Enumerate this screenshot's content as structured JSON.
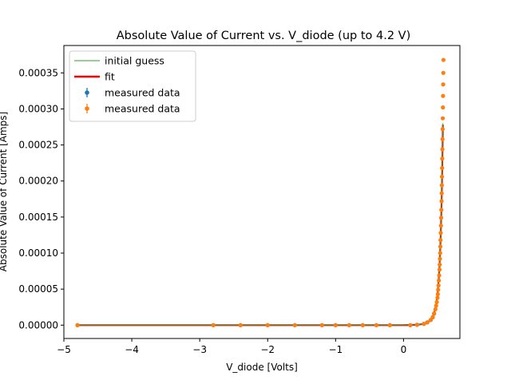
{
  "chart_data": {
    "type": "scatter",
    "title": "Absolute Value of Current vs. V_diode (up to 4.2 V)",
    "xlabel": "V_diode [Volts]",
    "ylabel": "Absolute Value of Current [Amps]",
    "xlim": [
      -5.0,
      0.83
    ],
    "ylim": [
      -1.85e-05,
      0.000388
    ],
    "xticks": [
      -5,
      -4,
      -3,
      -2,
      -1,
      0
    ],
    "xtick_labels": [
      "−5",
      "−4",
      "−3",
      "−2",
      "−1",
      "0"
    ],
    "yticks": [
      0,
      5e-05,
      0.0001,
      0.00015,
      0.0002,
      0.00025,
      0.0003,
      0.00035
    ],
    "ytick_labels": [
      "0.00000",
      "0.00005",
      "0.00010",
      "0.00015",
      "0.00020",
      "0.00025",
      "0.00030",
      "0.00035"
    ],
    "grid": false,
    "legend_position": "top-left",
    "colors": {
      "initial_guess": "#2ca02c",
      "fit": "#ff0000",
      "measured_blue": "#1f77b4",
      "measured_orange": "#ff7f0e"
    },
    "legend": [
      {
        "label": "initial guess",
        "kind": "line",
        "color": "#2ca02c"
      },
      {
        "label": " fit",
        "kind": "line-thick",
        "color": "#ff0000"
      },
      {
        "label": "measured data",
        "kind": "errorbar",
        "color": "#1f77b4"
      },
      {
        "label": "measured data",
        "kind": "errorbar",
        "color": "#ff7f0e"
      }
    ],
    "series": [
      {
        "name": "initial guess",
        "kind": "line",
        "x": [
          -4.8,
          -2.0,
          0.0,
          0.1,
          0.2,
          0.3,
          0.35,
          0.4,
          0.43,
          0.46,
          0.48,
          0.5,
          0.52,
          0.54,
          0.55,
          0.56,
          0.57,
          0.58
        ],
        "y": [
          0,
          0,
          0,
          2e-07,
          6e-07,
          1.8e-06,
          3.5e-06,
          7e-06,
          1.15e-05,
          1.9e-05,
          2.8e-05,
          4.2e-05,
          6.5e-05,
          0.0001,
          0.000128,
          0.000165,
          0.000215,
          0.00028
        ]
      },
      {
        "name": "fit",
        "kind": "line",
        "x": [
          -4.8,
          -2.0,
          0.0,
          0.1,
          0.2,
          0.25,
          0.3,
          0.35,
          0.4,
          0.43,
          0.46,
          0.48,
          0.5,
          0.52,
          0.53,
          0.54,
          0.55,
          0.56,
          0.57,
          0.58
        ],
        "y": [
          0,
          0,
          0,
          2e-07,
          6e-07,
          1.1e-06,
          1.9e-06,
          3.6e-06,
          7.2e-06,
          1.18e-05,
          1.98e-05,
          2.85e-05,
          4.25e-05,
          6.55e-05,
          8.2e-05,
          0.000104,
          0.000132,
          0.000168,
          0.000215,
          0.000278
        ]
      },
      {
        "name": "measured data",
        "kind": "errorbar",
        "color": "#1f77b4",
        "x": [
          -4.8,
          -2.8,
          -2.4,
          -2.0,
          -1.6,
          -1.2,
          -1.0,
          -0.8,
          -0.6,
          -0.4,
          -0.2,
          0.1,
          0.2,
          0.3,
          0.35,
          0.4,
          0.43,
          0.45
        ],
        "y": [
          0,
          0,
          0,
          0,
          0,
          0,
          0,
          0,
          0,
          0,
          0,
          0,
          5e-07,
          1.8e-06,
          3.8e-06,
          7.2e-06,
          1.1e-05,
          1.6e-05
        ]
      },
      {
        "name": "measured data",
        "kind": "errorbar",
        "color": "#ff7f0e",
        "x": [
          -4.8,
          -2.8,
          -2.4,
          -2.0,
          -1.6,
          -1.2,
          -1.0,
          -0.8,
          -0.6,
          -0.4,
          -0.2,
          0.1,
          0.2,
          0.3,
          0.35,
          0.4,
          0.43,
          0.45,
          0.47,
          0.48,
          0.49,
          0.5,
          0.505,
          0.51,
          0.515,
          0.52,
          0.525,
          0.53,
          0.533,
          0.536,
          0.539,
          0.542,
          0.545,
          0.548,
          0.551,
          0.554,
          0.557,
          0.56,
          0.562,
          0.564,
          0.566,
          0.568,
          0.57,
          0.572,
          0.574,
          0.576,
          0.578,
          0.58,
          0.582,
          0.584,
          0.586,
          0.588
        ],
        "y": [
          0,
          0,
          0,
          0,
          0,
          0,
          0,
          0,
          0,
          0,
          0,
          0,
          5e-07,
          1.8e-06,
          3.8e-06,
          7.2e-06,
          1.1e-05,
          1.6e-05,
          2.2e-05,
          2.7e-05,
          3.2e-05,
          3.8e-05,
          4.3e-05,
          4.9e-05,
          5.5e-05,
          6.2e-05,
          6.9e-05,
          7.7e-05,
          8.4e-05,
          9.2e-05,
          0.0001,
          0.000109,
          0.000118,
          0.000128,
          0.000138,
          0.000149,
          0.00016,
          0.000172,
          0.000183,
          0.000194,
          0.000206,
          0.000218,
          0.000231,
          0.000244,
          0.000258,
          0.000272,
          0.000287,
          0.000302,
          0.000318,
          0.000334,
          0.00035,
          0.000368
        ]
      }
    ]
  }
}
